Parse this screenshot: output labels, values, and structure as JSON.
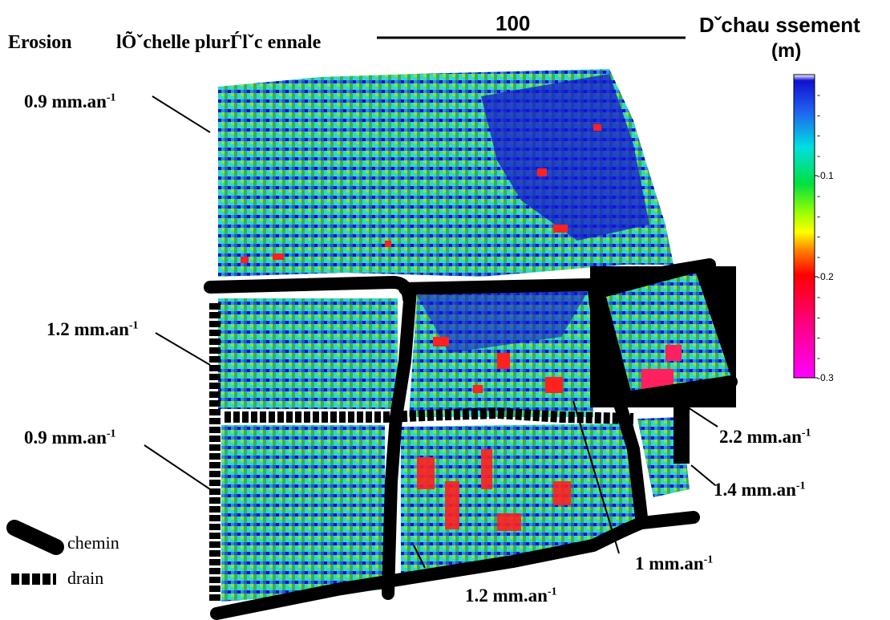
{
  "header": {
    "title_left": "Erosion",
    "title_mid": "lÕˇchelle plurЃlˇc ennale",
    "scale_value": "100"
  },
  "colorbar": {
    "title_line1": "Dˇchau ssement",
    "title_line2": "(m)",
    "range": [
      -0.3,
      0
    ],
    "tick_labels": [
      "-0.1",
      "-0.2",
      "-0.3"
    ],
    "minor_tick_mark": "-",
    "minor_tick_count": 4,
    "colors": [
      "#ffffff",
      "#1010d0",
      "#2060f0",
      "#00e0e0",
      "#00e040",
      "#a0ff00",
      "#ffff00",
      "#ff8000",
      "#ff0000",
      "#ff0080",
      "#ff00ff"
    ]
  },
  "rates": {
    "top_plot": "0.9 mm.an",
    "left_mid": "1.2 mm.an",
    "left_low": "0.9 mm.an",
    "right_upper": "2.2 mm.an",
    "right_lower": "1.4 mm.an",
    "center": "1 mm.an",
    "bottom": "1.2 mm.an",
    "exponent": "-1"
  },
  "legend": {
    "road_label": "chemin",
    "drain_label": "drain"
  },
  "palette": {
    "road": "#000000",
    "field_base": "#3aa0e8"
  }
}
